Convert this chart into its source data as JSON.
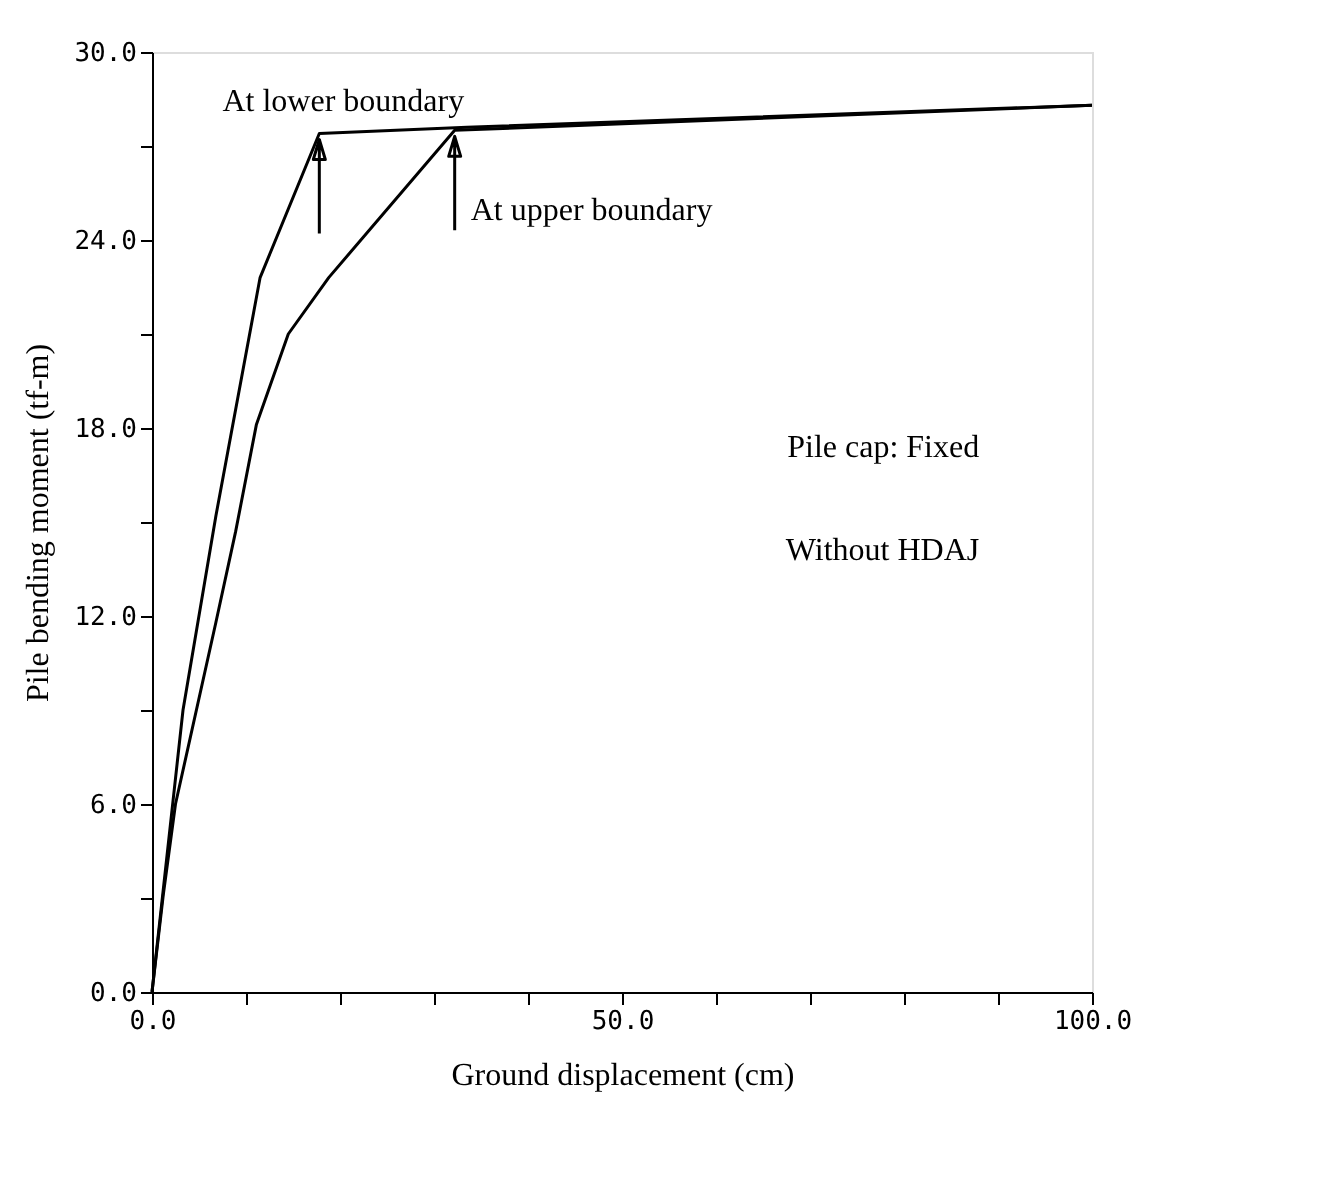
{
  "chart_data": {
    "type": "line",
    "xlabel": "Ground displacement (cm)",
    "ylabel": "Pile bending moment (tf-m)",
    "xlim": [
      0,
      100
    ],
    "ylim": [
      0,
      30
    ],
    "xticks": [
      {
        "value": 0,
        "label": "0.0"
      },
      {
        "value": 10,
        "label": null
      },
      {
        "value": 20,
        "label": null
      },
      {
        "value": 30,
        "label": null
      },
      {
        "value": 40,
        "label": null
      },
      {
        "value": 50,
        "label": "50.0"
      },
      {
        "value": 60,
        "label": null
      },
      {
        "value": 70,
        "label": null
      },
      {
        "value": 80,
        "label": null
      },
      {
        "value": 90,
        "label": null
      },
      {
        "value": 100,
        "label": "100.0"
      }
    ],
    "yticks": [
      {
        "value": 0,
        "label": "0.0"
      },
      {
        "value": 3,
        "label": null
      },
      {
        "value": 6,
        "label": "6.0"
      },
      {
        "value": 9,
        "label": null
      },
      {
        "value": 12,
        "label": "12.0"
      },
      {
        "value": 15,
        "label": null
      },
      {
        "value": 18,
        "label": "18.0"
      },
      {
        "value": 21,
        "label": null
      },
      {
        "value": 24,
        "label": "24.0"
      },
      {
        "value": 27,
        "label": null
      },
      {
        "value": 30,
        "label": "30.0"
      }
    ],
    "grid": false,
    "marker": "none",
    "line_style": "solid",
    "series": [
      {
        "color": "#000000",
        "x": [
          0,
          3.3,
          6.8,
          11.5,
          17.8,
          33.5,
          100
        ],
        "values": [
          0,
          9.0,
          15.2,
          22.8,
          27.4,
          27.6,
          28.3
        ]
      },
      {
        "color": "#000000",
        "x": [
          0,
          1.2,
          2.5,
          6.8,
          8.9,
          11.1,
          14.5,
          18.8,
          32.2,
          100
        ],
        "values": [
          0,
          3.1,
          6.0,
          11.8,
          14.7,
          18.1,
          21.0,
          22.8,
          27.5,
          28.3
        ]
      }
    ],
    "annotations": [
      {
        "text": "At lower boundary",
        "x": 17.8,
        "y": 27.4
      },
      {
        "text": "At upper boundary",
        "x": 32.2,
        "y": 27.5
      },
      "Pile cap: Fixed",
      "Without HDAJ"
    ]
  }
}
